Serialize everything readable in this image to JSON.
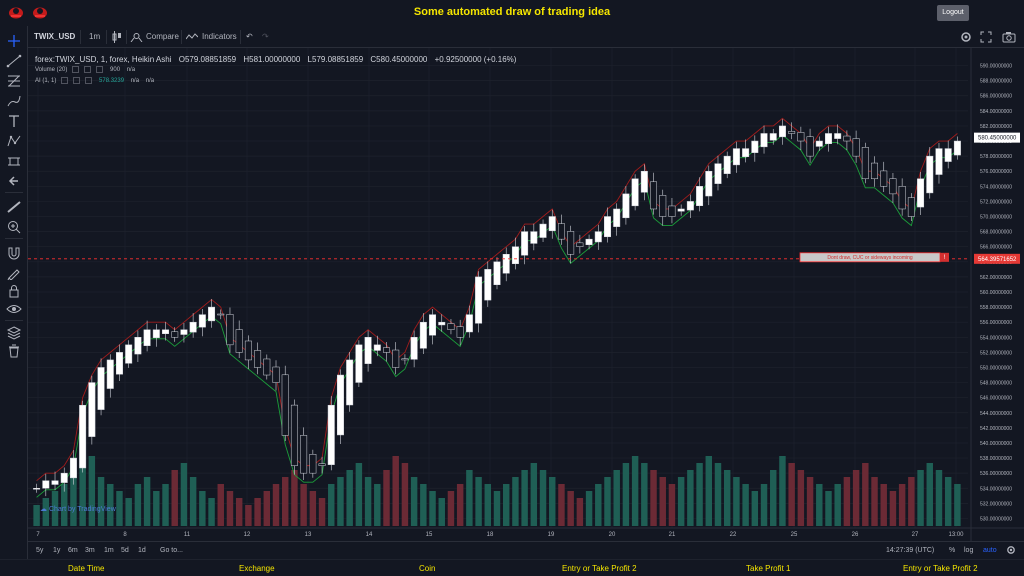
{
  "page": {
    "title": "Some automated draw of trading idea",
    "logout_label": "Logout"
  },
  "header": {
    "symbol": "TWIX_USD",
    "interval": "1m",
    "compare_label": "Compare",
    "indicators_label": "Indicators"
  },
  "legend": {
    "series_title": "forex:TWIX_USD, 1, forex, Heikin Ashi",
    "open": "O579.08851859",
    "high": "H581.00000000",
    "low": "L579.08851859",
    "close": "C580.45000000",
    "change": "+0.92500000 (+0.16%)",
    "volume_label": "Volume (20)",
    "volume_value": "900",
    "volume_ma": "n/a",
    "ai_label": "AI (1, 1)",
    "ai_value": "578.3239",
    "ai_na1": "n/a",
    "ai_na2": "n/a"
  },
  "price_axis": {
    "labels": [
      "590.00000000",
      "588.00000000",
      "586.00000000",
      "584.00000000",
      "582.00000000",
      "580.00000000",
      "578.00000000",
      "576.00000000",
      "574.00000000",
      "572.00000000",
      "570.00000000",
      "568.00000000",
      "566.00000000",
      "564.00000000",
      "562.00000000",
      "560.00000000",
      "558.00000000",
      "556.00000000",
      "554.00000000",
      "552.00000000",
      "550.00000000",
      "548.00000000",
      "546.00000000",
      "544.00000000",
      "542.00000000",
      "540.00000000",
      "538.00000000",
      "536.00000000",
      "534.00000000",
      "532.00000000",
      "530.00000000"
    ],
    "current_price": "580.45000000",
    "marker_price": "564.39571652"
  },
  "time_axis": {
    "labels": [
      "7",
      "8",
      "11",
      "12",
      "13",
      "14",
      "15",
      "18",
      "19",
      "20",
      "21",
      "22",
      "25",
      "26",
      "27",
      "13:00"
    ]
  },
  "annotation": {
    "text": "Dont draw, CUC or sideways incoming",
    "badge": "!"
  },
  "range_bar": {
    "ranges": [
      "5y",
      "1y",
      "6m",
      "3m",
      "1m",
      "5d",
      "1d"
    ],
    "goto_label": "Go to...",
    "clock": "14:27:39 (UTC)",
    "percent": "%",
    "log": "log",
    "auto": "auto"
  },
  "watermark": "Chart by TradingView",
  "footer": {
    "columns": [
      "Date Time",
      "Exchange",
      "Coin",
      "Entry or Take Profit 2",
      "Take Profit 1",
      "Entry or Take Profit 2"
    ]
  },
  "colors": {
    "background": "#131722",
    "title_yellow": "#f5e600",
    "up": "#26a69a",
    "down": "#ef5350",
    "marker_red": "#ff3030"
  },
  "chart_data": {
    "type": "candlestick",
    "ylim": [
      529,
      591
    ],
    "close_path": [
      534,
      535,
      535,
      536,
      538,
      545,
      548,
      550,
      551,
      552,
      553,
      554,
      555,
      555,
      555,
      554,
      555,
      556,
      557,
      558,
      557,
      553,
      552,
      551,
      550,
      549,
      548,
      541,
      537,
      536,
      536,
      537,
      545,
      549,
      551,
      553,
      554,
      553,
      552,
      550,
      551,
      554,
      556,
      557,
      556,
      555,
      554,
      557,
      562,
      563,
      564,
      565,
      566,
      568,
      568,
      569,
      570,
      567,
      565,
      566,
      567,
      568,
      570,
      571,
      573,
      575,
      576,
      571,
      570,
      570,
      571,
      572,
      574,
      576,
      577,
      578,
      579,
      579,
      580,
      581,
      581,
      582,
      581,
      580,
      578,
      580,
      581,
      581,
      580,
      578,
      575,
      575,
      574,
      573,
      571,
      570,
      575,
      578,
      579,
      579,
      580
    ],
    "volume_scale_note": "",
    "volume_values": [
      3,
      4,
      5,
      6,
      8,
      9,
      10,
      7,
      6,
      5,
      4,
      6,
      7,
      5,
      6,
      8,
      9,
      7,
      5,
      4,
      6,
      5,
      4,
      3,
      4,
      5,
      6,
      7,
      8,
      6,
      5,
      4,
      6,
      7,
      8,
      9,
      7,
      6,
      8,
      10,
      9,
      7,
      6,
      5,
      4,
      5,
      6,
      8,
      7,
      6,
      5,
      6,
      7,
      8,
      9,
      8,
      7,
      6,
      5,
      4,
      5,
      6,
      7,
      8,
      9,
      10,
      9,
      8,
      7,
      6,
      7,
      8,
      9,
      10,
      9,
      8,
      7,
      6,
      5,
      6,
      8,
      10,
      9,
      8,
      7,
      6,
      5,
      6,
      7,
      8,
      9,
      7,
      6,
      5,
      6,
      7,
      8,
      9,
      8,
      7,
      6
    ]
  }
}
